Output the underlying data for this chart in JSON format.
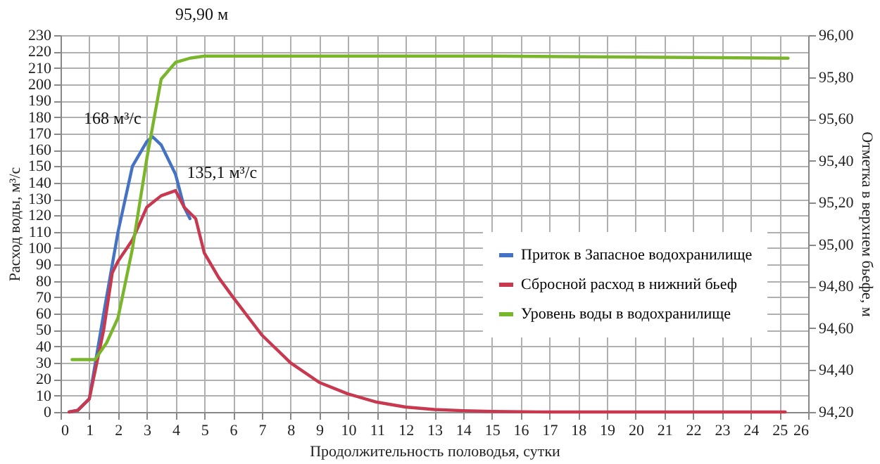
{
  "chart_data": {
    "type": "line",
    "xlabel": "Продолжительность половодья, сутки",
    "ylabel": "Расход воды, м³/с",
    "y2label": "Отметка в верхнем бьефе, м",
    "xlim": [
      0,
      26
    ],
    "xticks": [
      0,
      1,
      2,
      3,
      4,
      5,
      6,
      7,
      8,
      9,
      10,
      11,
      12,
      13,
      14,
      15,
      16,
      17,
      18,
      19,
      20,
      21,
      22,
      23,
      24,
      25,
      26
    ],
    "ylim": [
      0,
      230
    ],
    "yticks": [
      0,
      10,
      20,
      30,
      40,
      50,
      60,
      70,
      80,
      90,
      100,
      110,
      120,
      130,
      140,
      150,
      160,
      170,
      180,
      190,
      200,
      210,
      220,
      230
    ],
    "y2lim": [
      94.2,
      96.0
    ],
    "y2ticks": [
      {
        "value": 94.2,
        "label": "94,20"
      },
      {
        "value": 94.4,
        "label": "94,40"
      },
      {
        "value": 94.6,
        "label": "94,60"
      },
      {
        "value": 94.8,
        "label": "94,80"
      },
      {
        "value": 95.0,
        "label": "95,00"
      },
      {
        "value": 95.2,
        "label": "95,20"
      },
      {
        "value": 95.4,
        "label": "95,40"
      },
      {
        "value": 95.6,
        "label": "95,60"
      },
      {
        "value": 95.8,
        "label": "95,80"
      },
      {
        "value": 96.0,
        "label": "96,00"
      }
    ],
    "grid": true,
    "legend": "right",
    "line_style": "solid",
    "marker": "none",
    "series": [
      {
        "name": "Приток в Запасное водохранилище",
        "color": "#4472c4",
        "x": [
          0.3,
          0.6,
          1,
          1.5,
          2,
          2.5,
          3,
          3.2,
          3.5,
          4,
          4.3,
          4.5
        ],
        "values": [
          0,
          1,
          8,
          60,
          110,
          150,
          165,
          168,
          163,
          145,
          125,
          118
        ]
      },
      {
        "name": "Сбросной расход в нижний бьеф",
        "color": "#c8384f",
        "x": [
          0.3,
          0.6,
          1,
          1.5,
          1.8,
          2,
          2.5,
          3,
          3.5,
          4,
          4.3,
          4.7,
          5,
          5.5,
          6,
          7,
          8,
          9,
          10,
          11,
          12,
          13,
          14,
          15,
          17,
          25.2
        ],
        "values": [
          0,
          1,
          8,
          50,
          85,
          92,
          105,
          125,
          132,
          135.1,
          125,
          118,
          97,
          82,
          70,
          47,
          30,
          18,
          11,
          6,
          3,
          1.5,
          0.8,
          0.3,
          0,
          0
        ]
      },
      {
        "name": "Уровень воды в водохранилище",
        "color": "#7ab62c",
        "axis": "y2",
        "x": [
          0.4,
          1.2,
          1.6,
          2,
          2.5,
          3,
          3.5,
          4,
          4.5,
          5,
          15,
          25.3
        ],
        "values": [
          94.45,
          94.45,
          94.53,
          94.65,
          94.98,
          95.41,
          95.79,
          95.87,
          95.89,
          95.9,
          95.9,
          95.89
        ]
      }
    ],
    "annotations": [
      {
        "text": "168 м³/с",
        "x": 3.2,
        "y": 168
      },
      {
        "text": "135,1 м³/с",
        "x": 4,
        "y": 135.1
      },
      "95,90 м"
    ]
  }
}
